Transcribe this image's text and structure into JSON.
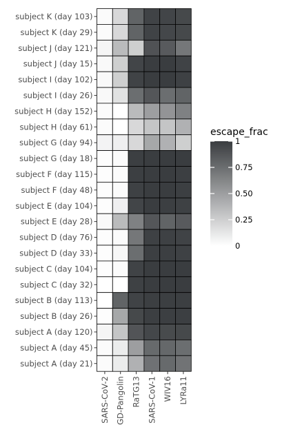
{
  "chart_data": {
    "type": "heatmap",
    "title": "",
    "xlabel": "",
    "ylabel": "",
    "x_categories": [
      "SARS-CoV-2",
      "GD-Pangolin",
      "RaTG13",
      "SARS-CoV-1",
      "WIV16",
      "LYRa11"
    ],
    "y_categories": [
      "subject K (day 103)",
      "subject K (day 29)",
      "subject J (day 121)",
      "subject J (day 15)",
      "subject I (day 102)",
      "subject I (day 26)",
      "subject H (day 152)",
      "subject H (day 61)",
      "subject G (day 94)",
      "subject G (day 18)",
      "subject F (day 115)",
      "subject F (day 48)",
      "subject E (day 104)",
      "subject E (day 28)",
      "subject D (day 76)",
      "subject D (day 33)",
      "subject C (day 104)",
      "subject C (day 32)",
      "subject B (day 113)",
      "subject B (day 26)",
      "subject A (day 120)",
      "subject A (day 45)",
      "subject A (day 21)"
    ],
    "values": [
      [
        0.02,
        0.2,
        0.8,
        0.97,
        0.96,
        0.94
      ],
      [
        0.02,
        0.2,
        0.8,
        0.97,
        0.95,
        0.94
      ],
      [
        0.05,
        0.35,
        0.25,
        0.89,
        0.85,
        0.7
      ],
      [
        0.03,
        0.25,
        0.96,
        1.0,
        1.0,
        0.97
      ],
      [
        0.03,
        0.25,
        0.97,
        1.0,
        1.0,
        0.98
      ],
      [
        0.03,
        0.15,
        0.75,
        0.87,
        0.75,
        0.8
      ],
      [
        0.02,
        0.0,
        0.35,
        0.5,
        0.55,
        0.65
      ],
      [
        0.02,
        0.0,
        0.2,
        0.3,
        0.3,
        0.4
      ],
      [
        0.06,
        0.08,
        0.2,
        0.45,
        0.4,
        0.25
      ],
      [
        0.01,
        0.02,
        0.99,
        1.0,
        1.0,
        1.0
      ],
      [
        0.01,
        0.02,
        0.99,
        1.0,
        1.0,
        0.99
      ],
      [
        0.01,
        0.02,
        0.98,
        1.0,
        1.0,
        0.99
      ],
      [
        0.01,
        0.08,
        0.96,
        1.0,
        0.99,
        0.98
      ],
      [
        0.03,
        0.35,
        0.65,
        0.87,
        0.8,
        0.85
      ],
      [
        0.01,
        0.02,
        0.7,
        0.98,
        0.98,
        0.97
      ],
      [
        0.01,
        0.04,
        0.75,
        0.99,
        0.99,
        0.98
      ],
      [
        0.01,
        0.02,
        0.97,
        1.0,
        1.0,
        1.0
      ],
      [
        0.0,
        0.0,
        0.98,
        1.0,
        1.0,
        1.0
      ],
      [
        0.0,
        0.8,
        0.97,
        0.99,
        0.99,
        0.99
      ],
      [
        0.01,
        0.45,
        0.94,
        0.99,
        0.99,
        0.99
      ],
      [
        0.05,
        0.3,
        0.88,
        0.95,
        0.93,
        0.94
      ],
      [
        0.02,
        0.1,
        0.5,
        0.77,
        0.78,
        0.75
      ],
      [
        0.02,
        0.1,
        0.4,
        0.73,
        0.77,
        0.72
      ]
    ],
    "color_range": [
      0,
      1
    ],
    "colors": {
      "low": "#ffffff",
      "high": "#3a3d40"
    },
    "legend": {
      "title": "escape_frac",
      "ticks": [
        0,
        0.25,
        0.5,
        0.75,
        1
      ],
      "tick_labels": [
        "0",
        "0.25",
        "0.50",
        "0.75",
        "1"
      ],
      "position": "right"
    },
    "grid": false
  }
}
